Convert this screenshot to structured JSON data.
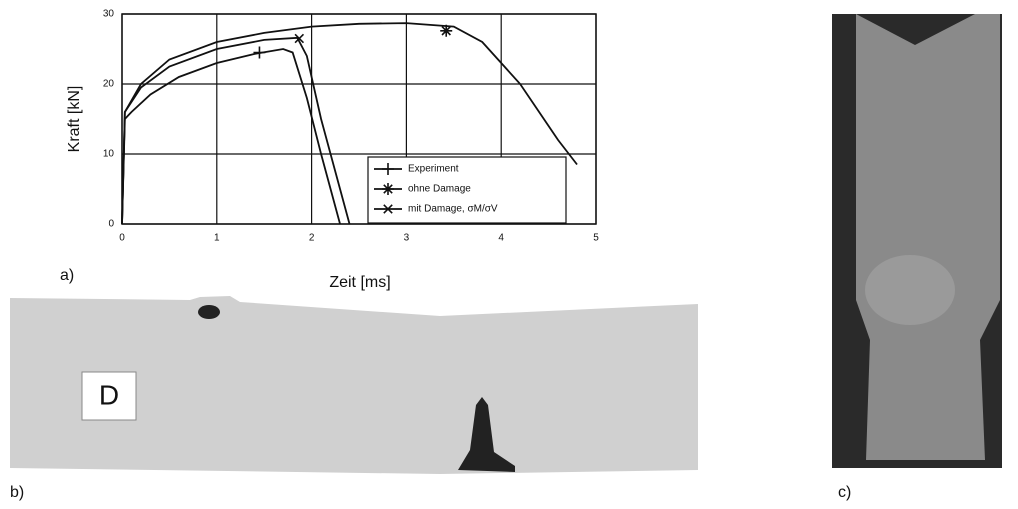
{
  "chart_data": {
    "type": "line",
    "x_label": "Zeit [ms]",
    "y_label": "Kraft [kN]",
    "xlim": [
      0,
      5
    ],
    "ylim": [
      0,
      30
    ],
    "xticks": [
      0,
      1,
      2,
      3,
      4,
      5
    ],
    "yticks": [
      0,
      10,
      20,
      30
    ],
    "grid": true,
    "series": [
      {
        "name": "Experiment",
        "color": "#111111",
        "marker": "+",
        "marker_point": [
          1.45,
          24.5
        ],
        "x": [
          0,
          0.03,
          0.1,
          0.3,
          0.6,
          1.0,
          1.4,
          1.7,
          1.8,
          1.95,
          2.1,
          2.3
        ],
        "values": [
          0,
          15,
          16,
          18.5,
          21,
          23,
          24.3,
          25,
          24.5,
          18,
          10,
          0
        ]
      },
      {
        "name": "ohne Damage",
        "color": "#111111",
        "marker": "*",
        "marker_point": [
          3.42,
          27.6
        ],
        "x": [
          0,
          0.03,
          0.2,
          0.5,
          1,
          1.5,
          2,
          2.5,
          3,
          3.5,
          3.8,
          4.2,
          4.6,
          4.8
        ],
        "values": [
          0,
          16,
          20,
          23.5,
          26,
          27.3,
          28.2,
          28.6,
          28.7,
          28.2,
          26,
          20,
          12,
          8.5
        ]
      },
      {
        "name": "mit Damage, σM/σV",
        "color": "#111111",
        "marker": "x",
        "marker_point": [
          1.87,
          26.5
        ],
        "x": [
          0,
          0.03,
          0.2,
          0.5,
          1,
          1.5,
          1.85,
          1.95,
          2.1,
          2.3,
          2.4
        ],
        "values": [
          0,
          16,
          19.5,
          22.5,
          25,
          26.3,
          26.6,
          24,
          15,
          5,
          0
        ]
      }
    ]
  },
  "panels": {
    "a": "a)",
    "b": "b)",
    "c": "c)",
    "b_label": "D"
  }
}
